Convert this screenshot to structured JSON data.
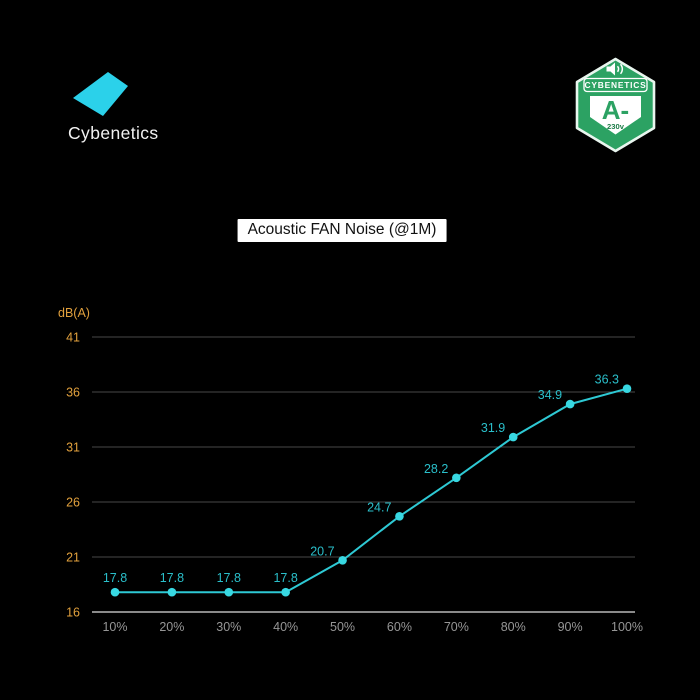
{
  "header": {
    "logo_text": "Cybenetics",
    "badge": {
      "brand": "CYBENETICS",
      "rating": "A-",
      "voltage": "230v",
      "icon": "speaker-icon",
      "green": "#2ca263",
      "border": "#e9f6ef",
      "voltage_color": "#1c7c47"
    },
    "logo_color": "#2bd1ea"
  },
  "title": "Acoustic FAN Noise (@1M)",
  "chart_data": {
    "type": "line",
    "title": "Acoustic FAN Noise (@1M)",
    "x": [
      "10%",
      "20%",
      "30%",
      "40%",
      "50%",
      "60%",
      "70%",
      "80%",
      "90%",
      "100%"
    ],
    "values": [
      17.8,
      17.8,
      17.8,
      17.8,
      20.7,
      24.7,
      28.2,
      31.9,
      34.9,
      36.3
    ],
    "ylabel": "dB(A)",
    "xlabel": "",
    "yticks": [
      16,
      21,
      26,
      31,
      36,
      41
    ],
    "ylim": [
      16,
      41
    ],
    "grid": true,
    "legend": "none",
    "line_color": "#2ec9d4",
    "point_color": "#38d8e2",
    "value_label_color": "#2abfca",
    "axis_label_color": "#e2a13d",
    "xtick_color": "#969696",
    "grid_color": "#484848",
    "axis_line_color": "#b8b8b8",
    "background": "#000000"
  }
}
